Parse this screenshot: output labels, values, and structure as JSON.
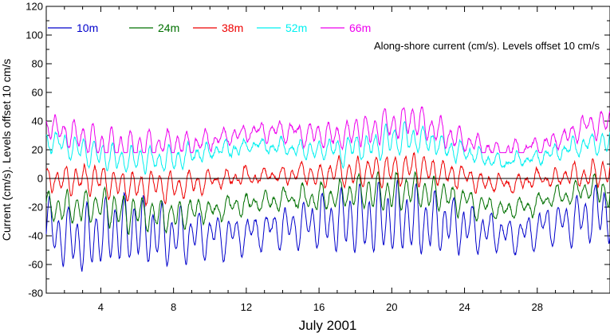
{
  "chart_data": {
    "type": "line",
    "title": "",
    "annotation": "Along-shore current (cm/s). Levels offset 10 cm/s",
    "xlabel": "July 2001",
    "ylabel": "Current (cm/s). Levels offset 10 cm/s",
    "xlim": [
      1,
      32
    ],
    "ylim": [
      -80,
      120
    ],
    "x_ticks": [
      4,
      8,
      12,
      16,
      20,
      24,
      28
    ],
    "x_tick_labels": [
      "4",
      "8",
      "12",
      "16",
      "20",
      "24",
      "28"
    ],
    "y_ticks": [
      -80,
      -60,
      -40,
      -20,
      0,
      20,
      40,
      60,
      80,
      100,
      120
    ],
    "y_tick_labels": [
      "-80",
      "-60",
      "-40",
      "-20",
      "0",
      "20",
      "40",
      "60",
      "80",
      "100",
      "120"
    ],
    "zero_line": true,
    "grid": false,
    "legend_position": "top-left",
    "series": [
      {
        "name": "10m",
        "color": "#0000cc",
        "base": [
          -32,
          -40,
          -44,
          -38,
          -36,
          -36,
          -38,
          -40,
          -40,
          -39,
          -40,
          -38,
          -36,
          -34,
          -32,
          -30,
          -30,
          -30,
          -29,
          -28,
          -30,
          -30,
          -32,
          -34,
          -36,
          -38,
          -39,
          -36,
          -32,
          -28,
          -24,
          -24
        ],
        "amplitude": 20,
        "peak": {
          "min": -70,
          "max": 10
        }
      },
      {
        "name": "24m",
        "color": "#007000",
        "base": [
          -20,
          -22,
          -22,
          -20,
          -22,
          -24,
          -26,
          -26,
          -22,
          -22,
          -20,
          -18,
          -16,
          -14,
          -12,
          -14,
          -12,
          -10,
          -10,
          -10,
          -8,
          -10,
          -12,
          -16,
          -18,
          -22,
          -20,
          -18,
          -12,
          -10,
          -8,
          -8
        ],
        "amplitude": 10,
        "peak": {
          "min": -42,
          "max": 10
        }
      },
      {
        "name": "38m",
        "color": "#ee0000",
        "base": [
          0,
          -2,
          0,
          -2,
          -4,
          -6,
          -6,
          -6,
          -4,
          -2,
          0,
          2,
          2,
          2,
          4,
          2,
          4,
          4,
          6,
          6,
          8,
          6,
          4,
          2,
          -2,
          -4,
          -2,
          0,
          2,
          2,
          4,
          4
        ],
        "amplitude": 9,
        "peak": {
          "min": -20,
          "max": 30
        }
      },
      {
        "name": "52m",
        "color": "#00f0f0",
        "base": [
          26,
          24,
          20,
          16,
          14,
          14,
          14,
          14,
          16,
          18,
          20,
          22,
          22,
          22,
          20,
          20,
          20,
          22,
          24,
          26,
          28,
          26,
          22,
          18,
          14,
          10,
          12,
          14,
          18,
          22,
          24,
          24
        ],
        "amplitude": 8,
        "peak": {
          "min": 0,
          "max": 44
        }
      },
      {
        "name": "66m",
        "color": "#ee00ee",
        "base": [
          38,
          32,
          28,
          24,
          22,
          22,
          24,
          24,
          24,
          26,
          30,
          32,
          34,
          34,
          32,
          30,
          30,
          32,
          34,
          38,
          40,
          38,
          32,
          26,
          22,
          18,
          20,
          22,
          28,
          32,
          36,
          38
        ],
        "amplitude": 9,
        "peak": {
          "min": 18,
          "max": 60
        }
      }
    ]
  }
}
